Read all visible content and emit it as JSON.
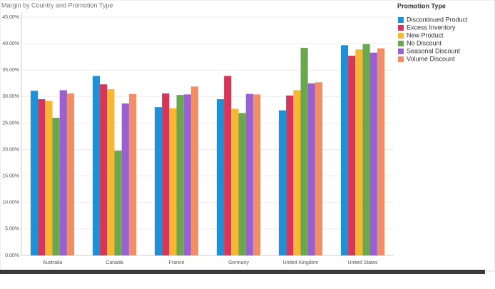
{
  "chart_data": {
    "type": "bar",
    "title": "Margin by Country and Promotion Type",
    "legend_title": "Promotion Type",
    "legend": "right",
    "grid": true,
    "categories": [
      "Australia",
      "Canada",
      "France",
      "Germany",
      "United Kingdom",
      "United States"
    ],
    "series": [
      {
        "name": "Discontinued Product",
        "color": "#1f8fd6",
        "values": [
          31.1,
          33.9,
          28.0,
          29.5,
          27.4,
          39.7
        ]
      },
      {
        "name": "Excess Inventory",
        "color": "#d6365a",
        "values": [
          29.5,
          32.3,
          30.6,
          33.9,
          30.2,
          37.7
        ]
      },
      {
        "name": "New Product",
        "color": "#f7b733",
        "values": [
          29.2,
          31.4,
          27.8,
          27.7,
          31.2,
          38.9
        ]
      },
      {
        "name": "No Discount",
        "color": "#6aa84f",
        "values": [
          26.0,
          19.8,
          30.3,
          26.9,
          39.2,
          39.9
        ]
      },
      {
        "name": "Seasonal Discount",
        "color": "#9a5fd1",
        "values": [
          31.2,
          28.7,
          30.4,
          30.5,
          32.5,
          38.3
        ]
      },
      {
        "name": "Volume Discount",
        "color": "#f28e66",
        "values": [
          30.6,
          30.5,
          31.9,
          30.4,
          32.7,
          39.1
        ]
      }
    ],
    "ylim": [
      0,
      45
    ],
    "yticks": [
      {
        "value": 0,
        "label": "0.00%"
      },
      {
        "value": 5,
        "label": "5.00%"
      },
      {
        "value": 10,
        "label": "10.00%"
      },
      {
        "value": 15,
        "label": "15.00%"
      },
      {
        "value": 20,
        "label": "20.00%"
      },
      {
        "value": 25,
        "label": "25.00%"
      },
      {
        "value": 30,
        "label": "30.00%"
      },
      {
        "value": 35,
        "label": "35.00%"
      },
      {
        "value": 40,
        "label": "40.00%"
      },
      {
        "value": 45,
        "label": "45.00%"
      }
    ]
  }
}
